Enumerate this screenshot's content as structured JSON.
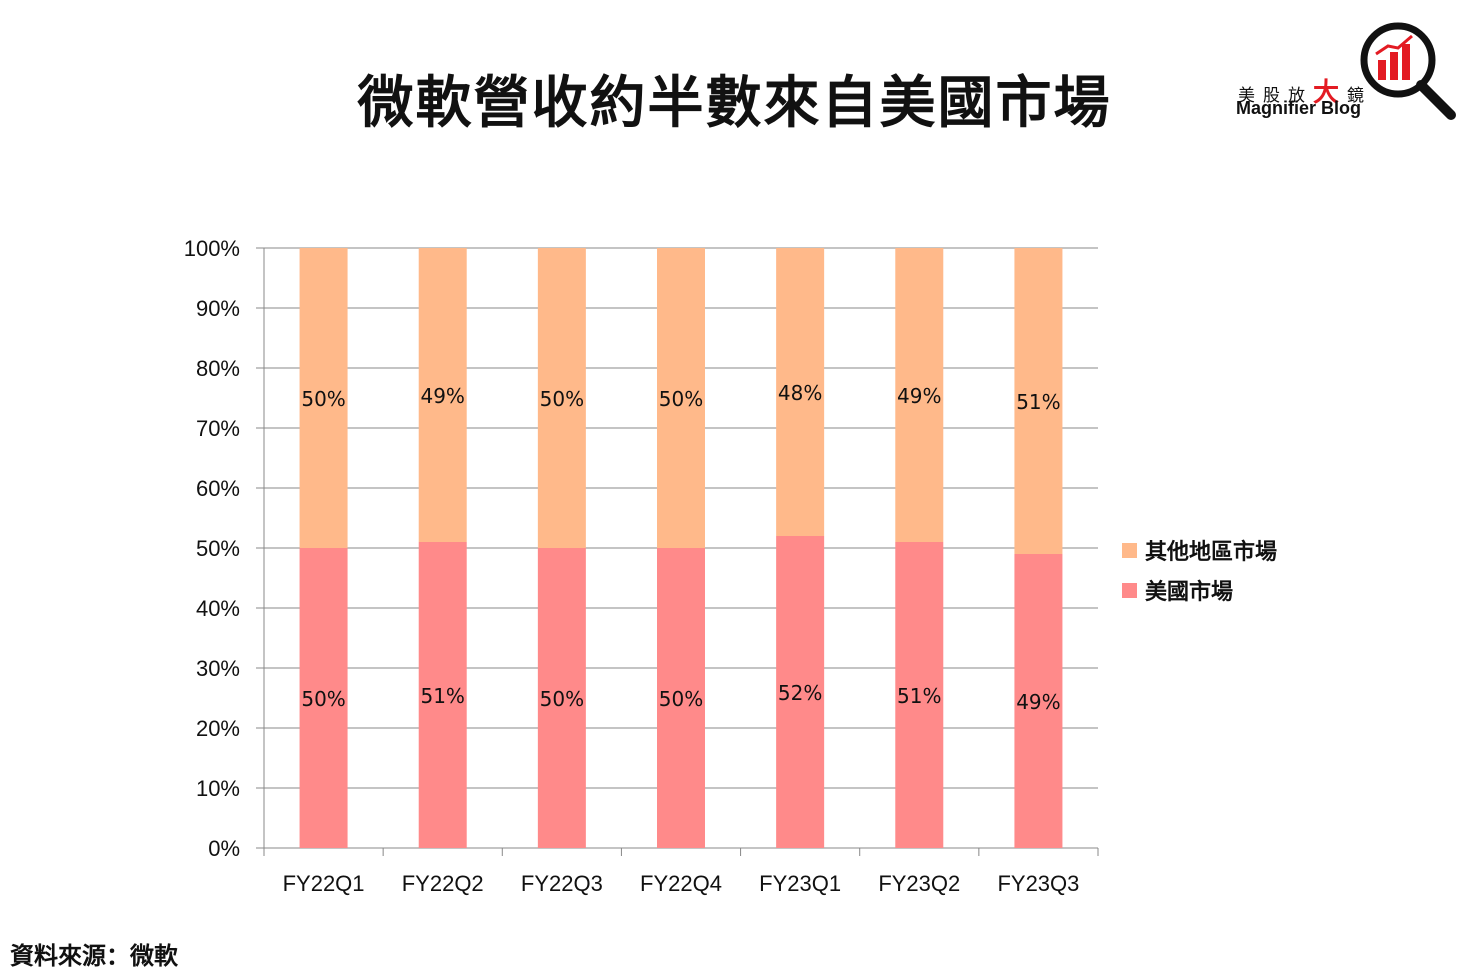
{
  "title": "微軟營收約半數來自美國市場",
  "logo": {
    "cn_prefix": "美股放",
    "cn_big": "大",
    "cn_suffix": "鏡",
    "en": "Magnifier Blog",
    "icon": "magnifier-bar-chart-icon"
  },
  "source": "資料來源：微軟",
  "colors": {
    "us": "#ff8a8a",
    "other": "#ffb98a",
    "grid": "#888888"
  },
  "chart_data": {
    "type": "bar",
    "stacked": true,
    "categories": [
      "FY22Q1",
      "FY22Q2",
      "FY22Q3",
      "FY22Q4",
      "FY23Q1",
      "FY23Q2",
      "FY23Q3"
    ],
    "series": [
      {
        "name": "美國市場",
        "values": [
          50,
          51,
          50,
          50,
          52,
          51,
          49
        ],
        "labels": [
          "50%",
          "51%",
          "50%",
          "50%",
          "52%",
          "51%",
          "49%"
        ]
      },
      {
        "name": "其他地區市場",
        "values": [
          50,
          49,
          50,
          50,
          48,
          49,
          51
        ],
        "labels": [
          "50%",
          "49%",
          "50%",
          "50%",
          "48%",
          "49%",
          "51%"
        ]
      }
    ],
    "y_ticks": [
      "0%",
      "10%",
      "20%",
      "30%",
      "40%",
      "50%",
      "60%",
      "70%",
      "80%",
      "90%",
      "100%"
    ],
    "ylim": [
      0,
      100
    ],
    "grid": true,
    "legend_position": "right"
  }
}
